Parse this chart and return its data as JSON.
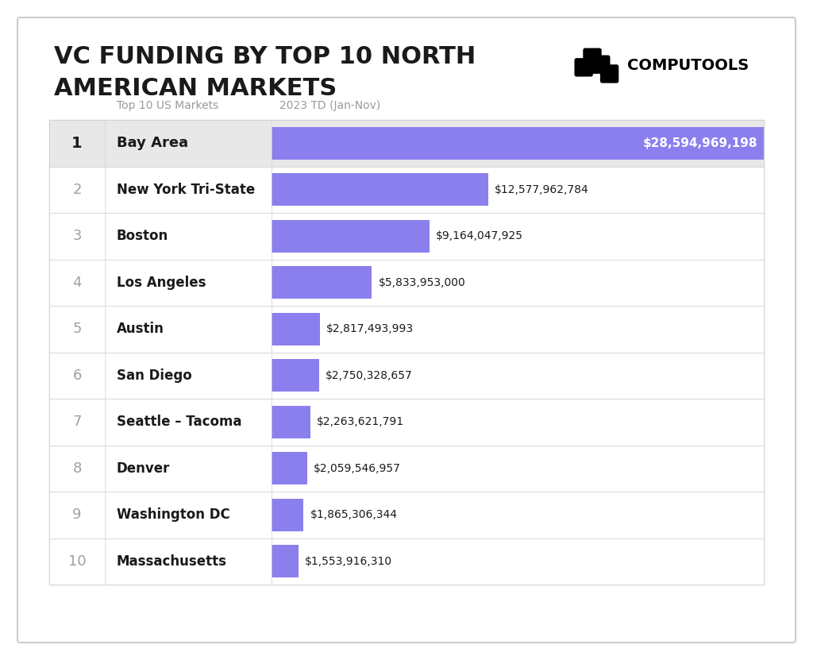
{
  "title_line1": "VC FUNDING BY TOP 10 NORTH",
  "title_line2": "AMERICAN MARKETS",
  "brand_name": "COMPUTOOLS",
  "col_header_1": "Top 10 US Markets",
  "col_header_2": "2023 TD (Jan-Nov)",
  "ranks": [
    1,
    2,
    3,
    4,
    5,
    6,
    7,
    8,
    9,
    10
  ],
  "markets": [
    "Bay Area",
    "New York Tri-State",
    "Boston",
    "Los Angeles",
    "Austin",
    "San Diego",
    "Seattle – Tacoma",
    "Denver",
    "Washington DC",
    "Massachusetts"
  ],
  "values": [
    28594969198,
    12577962784,
    9164047925,
    5833953000,
    2817493993,
    2750328657,
    2263621791,
    2059546957,
    1865306344,
    1553916310
  ],
  "labels": [
    "$28,594,969,198",
    "$12,577,962,784",
    "$9,164,047,925",
    "$5,833,953,000",
    "$2,817,493,993",
    "$2,750,328,657",
    "$2,263,621,791",
    "$2,059,546,957",
    "$1,865,306,344",
    "$1,553,916,310"
  ],
  "row_bg_first": "#e8e8e8",
  "row_bg_white": "#ffffff",
  "border_color": "#d0d0d0",
  "text_color_dark": "#1a1a1a",
  "text_color_gray": "#a0a0a0",
  "title_color": "#1a1a1a",
  "background_color": "#ffffff",
  "bar_purple": "#8B7FEE",
  "outer_border_color": "#cccccc",
  "header_text_color": "#999999"
}
